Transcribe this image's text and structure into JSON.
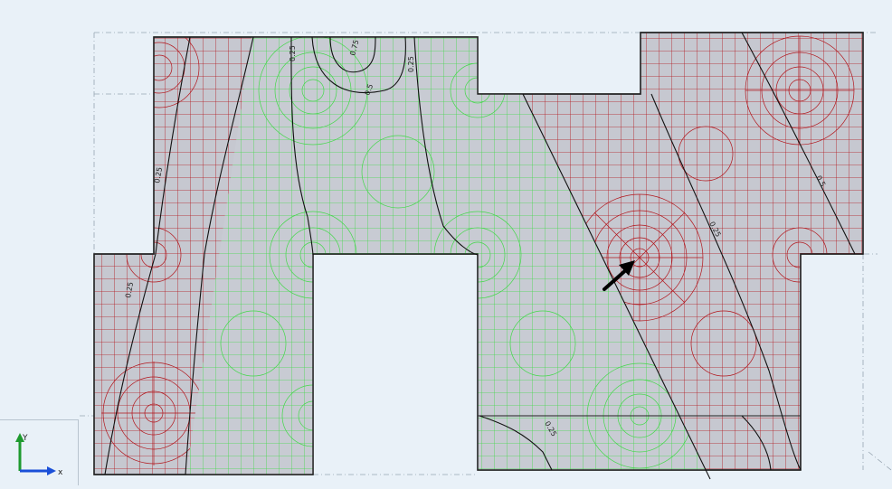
{
  "viewport": {
    "background": "#e9f1f8",
    "plate_fill": "#c6c8d0",
    "red_mesh_color": "#b2161c",
    "green_mesh_color": "#43d84a",
    "contour_color": "#111111",
    "guide_color": "#98a6b2"
  },
  "contour_labels": [
    {
      "id": "label-025-top-left",
      "text": "0.25"
    },
    {
      "id": "label-075-top",
      "text": "0.75"
    },
    {
      "id": "label-05-top",
      "text": "0.5"
    },
    {
      "id": "label-025-top-right",
      "text": "0.25"
    },
    {
      "id": "label-025-left-upper",
      "text": "0.25"
    },
    {
      "id": "label-025-left-lower",
      "text": "0.25"
    },
    {
      "id": "label-05-right",
      "text": "0.5"
    },
    {
      "id": "label-025-right",
      "text": "0.25"
    },
    {
      "id": "label-025-bottom",
      "text": "0.25"
    }
  ],
  "axis_triad": {
    "y_label": "Y",
    "x_label": "x",
    "y_color": "#1f9a2f",
    "x_color": "#1a4fd8"
  },
  "annotation": {
    "arrow_icon": "pointer-arrow-icon"
  }
}
